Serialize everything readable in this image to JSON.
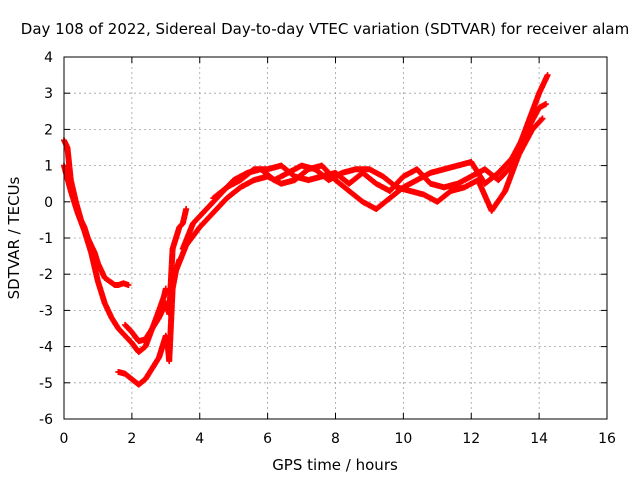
{
  "chart_data": {
    "type": "scatter",
    "title": "Day 108 of 2022, Sidereal Day-to-day VTEC variation (SDTVAR) for receiver alam",
    "xlabel": "GPS time / hours",
    "ylabel": "SDTVAR / TECUs",
    "xlim": [
      0,
      16
    ],
    "ylim": [
      -6,
      4
    ],
    "xticks": [
      "0",
      "2",
      "4",
      "6",
      "8",
      "10",
      "12",
      "14",
      "16"
    ],
    "yticks": [
      "-6",
      "-5",
      "-4",
      "-3",
      "-2",
      "-1",
      "0",
      "1",
      "2",
      "3",
      "4"
    ],
    "grid": true,
    "legend": "none",
    "marker": "plus",
    "color": "#ff0000",
    "series": [
      {
        "x": [
          0.0,
          0.1,
          0.2,
          0.35,
          0.5,
          0.6,
          0.7,
          0.8,
          0.9,
          1.0,
          1.1,
          1.2,
          1.35,
          1.5,
          1.6,
          1.75,
          1.9
        ],
        "y": [
          1.7,
          1.5,
          0.6,
          0.0,
          -0.5,
          -0.7,
          -1.0,
          -1.2,
          -1.4,
          -1.7,
          -1.9,
          -2.1,
          -2.2,
          -2.3,
          -2.3,
          -2.25,
          -2.3
        ]
      },
      {
        "x": [
          0.0,
          0.2,
          0.4,
          0.6,
          0.8,
          1.0,
          1.2,
          1.4,
          1.6,
          1.8,
          2.0,
          2.2,
          2.4,
          2.6,
          2.8,
          2.95,
          3.0
        ],
        "y": [
          1.0,
          0.3,
          -0.3,
          -0.8,
          -1.4,
          -2.2,
          -2.8,
          -3.2,
          -3.5,
          -3.7,
          -3.9,
          -4.15,
          -4.0,
          -3.5,
          -3.0,
          -2.6,
          -2.4
        ]
      },
      {
        "x": [
          1.6,
          1.8,
          2.0,
          2.2,
          2.4,
          2.6,
          2.8,
          2.9,
          3.0,
          3.05,
          3.1,
          3.2,
          3.3,
          3.4
        ],
        "y": [
          -4.7,
          -4.75,
          -4.9,
          -5.05,
          -4.9,
          -4.6,
          -4.3,
          -4.0,
          -3.7,
          -3.9,
          -4.4,
          -2.4,
          -1.9,
          -1.6
        ]
      },
      {
        "x": [
          1.8,
          2.0,
          2.2,
          2.4,
          2.6,
          2.8,
          3.0,
          3.1,
          3.2,
          3.3,
          3.4,
          3.5,
          3.6
        ],
        "y": [
          -3.4,
          -3.6,
          -3.85,
          -3.8,
          -3.5,
          -3.2,
          -2.8,
          -3.1,
          -1.3,
          -1.0,
          -0.7,
          -0.6,
          -0.2
        ]
      },
      {
        "x": [
          3.3,
          3.6,
          4.0,
          4.4,
          4.8,
          5.2,
          5.6,
          6.0,
          6.4,
          6.8,
          7.2,
          7.6,
          8.0,
          8.4,
          8.8,
          9.2,
          9.6,
          10.0,
          10.4,
          10.8,
          11.2,
          11.6,
          12.0,
          12.4,
          12.8,
          13.2,
          13.6,
          14.0,
          14.2
        ],
        "y": [
          -1.9,
          -1.2,
          -0.7,
          -0.3,
          0.1,
          0.4,
          0.6,
          0.7,
          0.5,
          0.6,
          0.9,
          1.0,
          0.6,
          0.3,
          0.0,
          -0.2,
          0.1,
          0.4,
          0.6,
          0.8,
          0.9,
          1.0,
          1.1,
          0.5,
          0.8,
          1.2,
          1.9,
          2.6,
          2.7
        ]
      },
      {
        "x": [
          3.5,
          3.8,
          4.2,
          4.6,
          5.0,
          5.4,
          5.8,
          6.2,
          6.6,
          7.0,
          7.4,
          7.8,
          8.2,
          8.6,
          9.0,
          9.4,
          9.8,
          10.2,
          10.6,
          11.0,
          11.4,
          11.8,
          12.2,
          12.6,
          13.0,
          13.4,
          13.8,
          14.1
        ],
        "y": [
          -1.3,
          -0.6,
          -0.2,
          0.2,
          0.6,
          0.8,
          0.9,
          0.6,
          0.8,
          1.0,
          0.9,
          0.6,
          0.8,
          0.9,
          0.9,
          0.7,
          0.4,
          0.3,
          0.2,
          0.0,
          0.3,
          0.4,
          0.6,
          -0.25,
          0.3,
          1.3,
          2.0,
          2.3
        ]
      },
      {
        "x": [
          4.4,
          4.8,
          5.2,
          5.6,
          6.0,
          6.4,
          6.8,
          7.2,
          7.6,
          8.0,
          8.4,
          8.8,
          9.2,
          9.6,
          10.0,
          10.4,
          10.8,
          11.2,
          11.6,
          12.0,
          12.4,
          12.8,
          13.2,
          13.6,
          14.0,
          14.25
        ],
        "y": [
          0.1,
          0.4,
          0.6,
          0.9,
          0.9,
          1.0,
          0.7,
          0.6,
          0.7,
          0.8,
          0.5,
          0.8,
          0.5,
          0.3,
          0.7,
          0.9,
          0.5,
          0.4,
          0.5,
          0.7,
          0.9,
          0.6,
          1.0,
          2.0,
          3.0,
          3.5
        ]
      }
    ]
  }
}
